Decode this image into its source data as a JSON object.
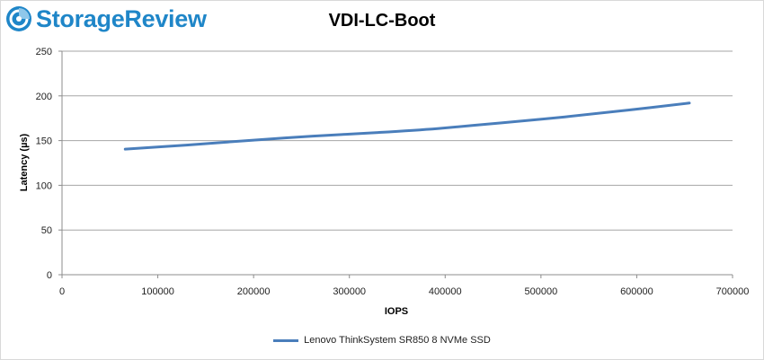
{
  "brand": {
    "name": "StorageReview",
    "icon": "storagereview-logo-icon",
    "color": "#1f86c8"
  },
  "chart_data": {
    "type": "line",
    "title": "VDI-LC-Boot",
    "xlabel": "IOPS",
    "ylabel": "Latency (µs)",
    "xlim": [
      0,
      700000
    ],
    "ylim": [
      0,
      250
    ],
    "xticks": [
      0,
      100000,
      200000,
      300000,
      400000,
      500000,
      600000,
      700000
    ],
    "yticks": [
      0,
      50,
      100,
      150,
      200,
      250
    ],
    "grid": true,
    "legend_position": "bottom",
    "series": [
      {
        "name": "Lenovo ThinkSystem SR850 8 NVMe SSD",
        "color": "#4a7ebb",
        "x": [
          66000,
          130000,
          200000,
          262000,
          330000,
          392000,
          460000,
          525000,
          590000,
          655000
        ],
        "y": [
          140.5,
          145,
          150.5,
          155,
          159,
          163.5,
          170,
          176.5,
          184,
          192
        ]
      }
    ]
  }
}
